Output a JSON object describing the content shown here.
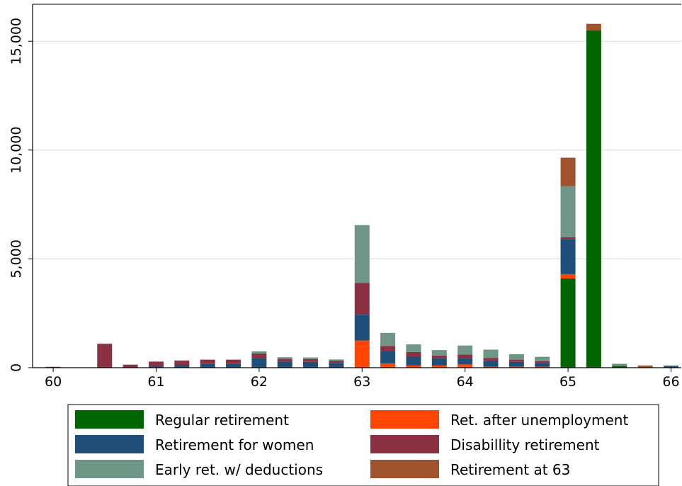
{
  "chart_data": {
    "type": "bar",
    "stacked": true,
    "x_ticks": [
      "60",
      "61",
      "62",
      "63",
      "64",
      "65",
      "66"
    ],
    "y_ticks": [
      "0",
      "5,000",
      "10,000",
      "15,000"
    ],
    "y_tick_values": [
      0,
      5000,
      10000,
      15000
    ],
    "ylim": [
      0,
      16700
    ],
    "xlim": [
      59.8,
      66.1
    ],
    "grid": "horizontal",
    "legend_position": "bottom",
    "x": [
      60.0,
      60.5,
      60.75,
      61.0,
      61.25,
      61.5,
      61.75,
      62.0,
      62.25,
      62.5,
      62.75,
      63.0,
      63.25,
      63.5,
      63.75,
      64.0,
      64.25,
      64.5,
      64.75,
      65.0,
      65.25,
      65.5,
      65.75,
      66.0
    ],
    "series": [
      {
        "name": "Regular retirement",
        "color": "#006400",
        "values": [
          0,
          0,
          0,
          0,
          0,
          0,
          0,
          0,
          0,
          0,
          0,
          0,
          0,
          0,
          0,
          0,
          0,
          0,
          0,
          4100,
          15500,
          80,
          0,
          0
        ]
      },
      {
        "name": "Ret. after unemployment",
        "color": "#ff4500",
        "values": [
          0,
          0,
          0,
          0,
          0,
          0,
          0,
          0,
          0,
          0,
          0,
          1250,
          200,
          100,
          100,
          150,
          50,
          50,
          50,
          200,
          0,
          0,
          0,
          0
        ]
      },
      {
        "name": "Retirement for women",
        "color": "#1f4e79",
        "values": [
          0,
          0,
          0,
          80,
          130,
          170,
          170,
          450,
          280,
          270,
          220,
          1200,
          550,
          420,
          330,
          300,
          250,
          220,
          170,
          1600,
          0,
          0,
          0,
          90
        ]
      },
      {
        "name": "Disabillity retirement",
        "color": "#8b3142",
        "values": [
          40,
          1100,
          140,
          200,
          200,
          200,
          200,
          200,
          130,
          130,
          100,
          1450,
          250,
          200,
          130,
          150,
          150,
          100,
          80,
          100,
          0,
          0,
          0,
          0
        ]
      },
      {
        "name": "Early ret. w/ deductions",
        "color": "#6e9585",
        "values": [
          0,
          0,
          0,
          0,
          0,
          0,
          0,
          100,
          70,
          70,
          60,
          2650,
          600,
          350,
          250,
          420,
          380,
          250,
          200,
          2350,
          0,
          100,
          0,
          0
        ]
      },
      {
        "name": "Retirement at 63",
        "color": "#a0522d",
        "values": [
          0,
          0,
          0,
          0,
          0,
          0,
          0,
          0,
          0,
          0,
          0,
          0,
          0,
          0,
          0,
          0,
          0,
          0,
          0,
          1300,
          300,
          0,
          100,
          0
        ]
      }
    ]
  }
}
